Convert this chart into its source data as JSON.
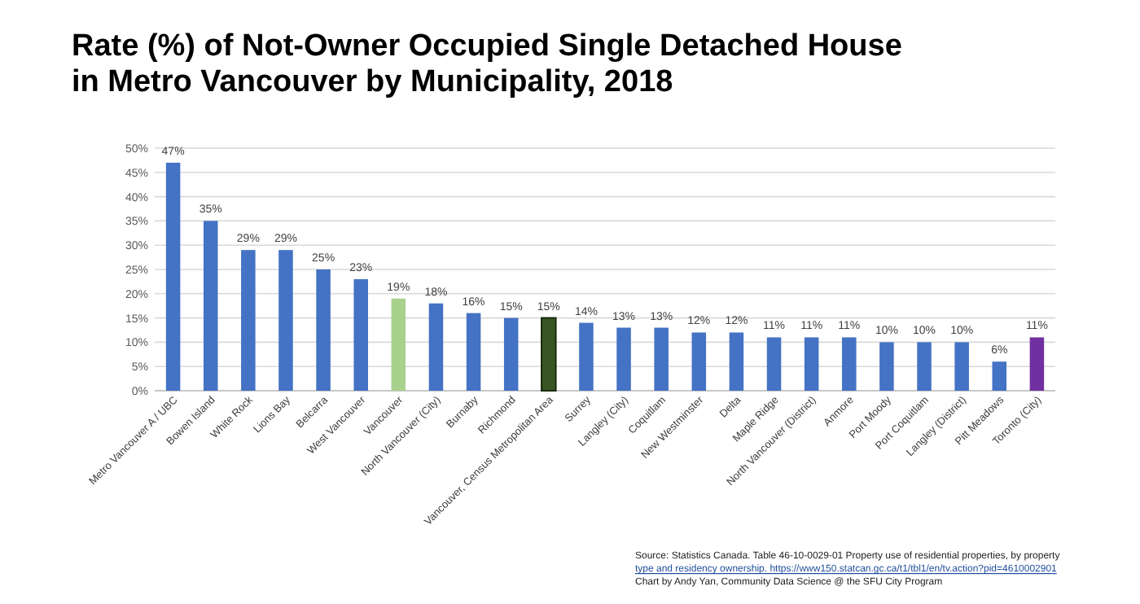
{
  "chart_data": {
    "type": "bar",
    "title": "Rate (%) of Not-Owner Occupied Single Detached House\nin Metro Vancouver by Municipality, 2018",
    "categories": [
      "Metro Vancouver A / UBC",
      "Bowen Island",
      "White Rock",
      "Lions Bay",
      "Belcarra",
      "West Vancouver",
      "Vancouver",
      "North Vancouver (City)",
      "Burnaby",
      "Richmond",
      "Vancouver, Census Metropolitan Area",
      "Surrey",
      "Langley (City)",
      "Coquitlam",
      "New Westminster",
      "Delta",
      "Maple Ridge",
      "North Vancouver (District)",
      "Anmore",
      "Port Moody",
      "Port Coquitlam",
      "Langley (District)",
      "Pitt Meadows",
      "Toronto (City)"
    ],
    "values": [
      47,
      35,
      29,
      29,
      25,
      23,
      19,
      18,
      16,
      15,
      15,
      14,
      13,
      13,
      12,
      12,
      11,
      11,
      11,
      10,
      10,
      10,
      6,
      11
    ],
    "colors": [
      "#4472c4",
      "#4472c4",
      "#4472c4",
      "#4472c4",
      "#4472c4",
      "#4472c4",
      "#a9d18e",
      "#4472c4",
      "#4472c4",
      "#4472c4",
      "#375623",
      "#4472c4",
      "#4472c4",
      "#4472c4",
      "#4472c4",
      "#4472c4",
      "#4472c4",
      "#4472c4",
      "#4472c4",
      "#4472c4",
      "#4472c4",
      "#4472c4",
      "#4472c4",
      "#7030a0"
    ],
    "value_labels": [
      "47%",
      "35%",
      "29%",
      "29%",
      "25%",
      "23%",
      "19%",
      "18%",
      "16%",
      "15%",
      "15%",
      "14%",
      "13%",
      "13%",
      "12%",
      "12%",
      "11%",
      "11%",
      "11%",
      "10%",
      "10%",
      "10%",
      "6%",
      "11%"
    ],
    "ylim": [
      0,
      50
    ],
    "yticks": [
      {
        "value": 0,
        "label": "0%"
      },
      {
        "value": 5,
        "label": "5%"
      },
      {
        "value": 10,
        "label": "10%"
      },
      {
        "value": 15,
        "label": "15%"
      },
      {
        "value": 20,
        "label": "20%"
      },
      {
        "value": 25,
        "label": "25%"
      },
      {
        "value": 30,
        "label": "30%"
      },
      {
        "value": 35,
        "label": "35%"
      },
      {
        "value": 40,
        "label": "40%"
      },
      {
        "value": 45,
        "label": "45%"
      },
      {
        "value": 50,
        "label": "50%"
      }
    ],
    "grid": "y",
    "annotations": [
      "Source:  Statistics Canada. Table 46-10-0029-01 Property use of residential properties, by property",
      "type and residency ownership. https://www150.statcan.gc.ca/t1/tbl1/en/tv.action?pid=4610002901",
      "Chart by Andy Yan, Community Data Science @ the SFU City Program"
    ]
  }
}
